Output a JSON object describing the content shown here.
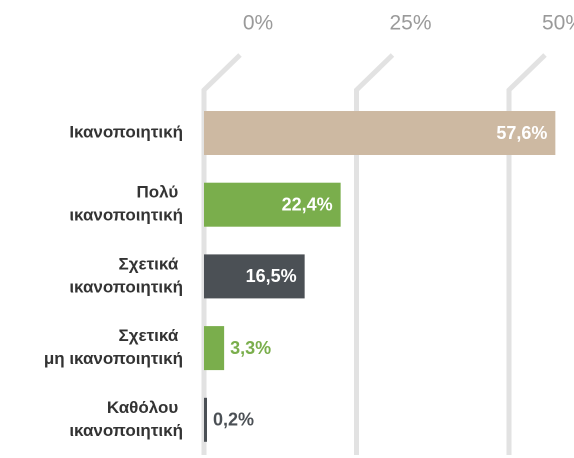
{
  "chart_data": {
    "type": "hbar",
    "categories": [
      "Ικανοποιητική",
      "Πολύ ικανοποιητική",
      "Σχετικά ικανοποιητική",
      "Σχετικά μη ικανοποιητική",
      "Καθόλου ικανοποιητική"
    ],
    "values": [
      57.6,
      22.4,
      16.5,
      3.3,
      0.2
    ],
    "value_labels": [
      "57,6%",
      "22,4%",
      "16,5%",
      "3,3%",
      "0,2%"
    ],
    "colors": [
      "#cdb9a2",
      "#7aae4c",
      "#4b5055",
      "#7aae4c",
      "#4b5055"
    ],
    "xlim": [
      0,
      60
    ],
    "xticks": [
      {
        "value": 0,
        "label": "0%"
      },
      {
        "value": 25,
        "label": "25%"
      },
      {
        "value": 50,
        "label": "50%"
      }
    ],
    "grid": true
  }
}
